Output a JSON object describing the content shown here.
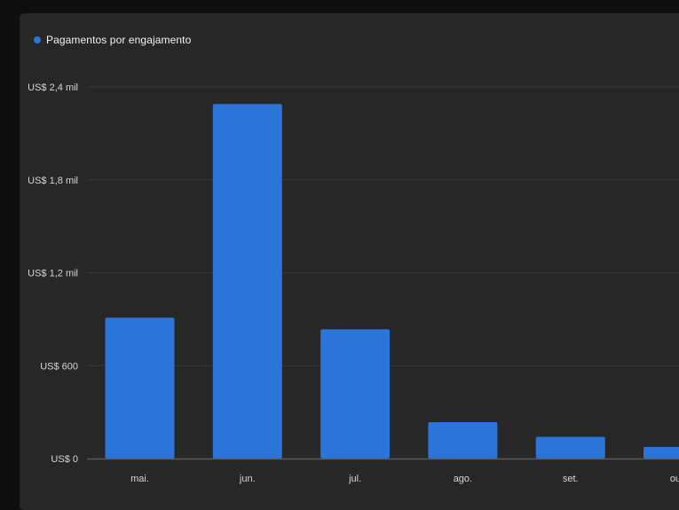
{
  "colors": {
    "background": "#0e0e0e",
    "panel": "#272727",
    "bar": "#2b74d9",
    "grid": "#3a3a3a",
    "baseline": "#5a5a5a",
    "tick_text": "#d6d6d6"
  },
  "legend": {
    "label": "Pagamentos por engajamento"
  },
  "chart_data": {
    "type": "bar",
    "title": "",
    "xlabel": "",
    "ylabel": "",
    "ylim": [
      0,
      2400
    ],
    "grid": true,
    "legend_position": "top-left",
    "y_ticks": [
      {
        "value": 0,
        "label": "US$ 0"
      },
      {
        "value": 600,
        "label": "US$ 600"
      },
      {
        "value": 1200,
        "label": "US$ 1,2 mil"
      },
      {
        "value": 1800,
        "label": "US$ 1,8 mil"
      },
      {
        "value": 2400,
        "label": "US$ 2,4 mil"
      }
    ],
    "categories": [
      "mai.",
      "jun.",
      "jul.",
      "ago.",
      "set.",
      "out."
    ],
    "series": [
      {
        "name": "Pagamentos por engajamento",
        "values": [
          910,
          2290,
          835,
          235,
          140,
          75
        ]
      }
    ]
  }
}
